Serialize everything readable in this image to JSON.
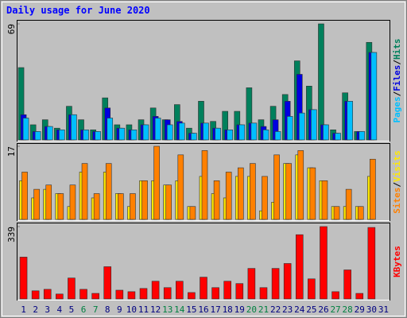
{
  "title": "Daily usage for June 2020",
  "legend_separator": "/",
  "chart_data": [
    {
      "type": "bar",
      "categories": [
        "1",
        "2",
        "3",
        "4",
        "5",
        "6",
        "7",
        "8",
        "9",
        "10",
        "11",
        "12",
        "13",
        "14",
        "15",
        "16",
        "17",
        "18",
        "19",
        "20",
        "21",
        "22",
        "23",
        "24",
        "25",
        "26",
        "27",
        "28",
        "29",
        "30",
        "31"
      ],
      "ylim": [
        0,
        69
      ],
      "yticks": [
        69
      ],
      "series": [
        {
          "name": "Hits",
          "color": "#00805c",
          "values": [
            43,
            9,
            12,
            7,
            20,
            12,
            6,
            25,
            9,
            9,
            12,
            19,
            12,
            21,
            7,
            23,
            11,
            17,
            17,
            31,
            12,
            20,
            27,
            47,
            32,
            69,
            6,
            28,
            5,
            58,
            0
          ]
        },
        {
          "name": "Files",
          "color": "#0000e0",
          "values": [
            15,
            5,
            8,
            6,
            15,
            6,
            5,
            19,
            7,
            6,
            9,
            14,
            12,
            11,
            4,
            10,
            7,
            6,
            9,
            10,
            8,
            12,
            23,
            39,
            18,
            9,
            4,
            23,
            5,
            52,
            0
          ]
        },
        {
          "name": "Pages",
          "color": "#00bfff",
          "values": [
            13,
            5,
            8,
            6,
            15,
            6,
            5,
            13,
            7,
            6,
            9,
            13,
            9,
            10,
            4,
            10,
            7,
            6,
            9,
            10,
            6,
            5,
            14,
            16,
            18,
            9,
            4,
            23,
            5,
            52,
            0
          ]
        }
      ]
    },
    {
      "type": "bar",
      "categories": [
        "1",
        "2",
        "3",
        "4",
        "5",
        "6",
        "7",
        "8",
        "9",
        "10",
        "11",
        "12",
        "13",
        "14",
        "15",
        "16",
        "17",
        "18",
        "19",
        "20",
        "21",
        "22",
        "23",
        "24",
        "25",
        "26",
        "27",
        "28",
        "29",
        "30",
        "31"
      ],
      "ylim": [
        0,
        17
      ],
      "yticks": [
        17
      ],
      "series": [
        {
          "name": "Visits",
          "color": "#ffe800",
          "values": [
            9,
            5,
            7,
            6,
            3,
            11,
            5,
            11,
            6,
            3,
            9,
            9,
            8,
            9,
            3,
            10,
            6,
            5,
            10,
            10,
            2,
            4,
            13,
            15,
            12,
            9,
            3,
            3,
            3,
            10,
            0
          ]
        },
        {
          "name": "Sites",
          "color": "#ff8000",
          "values": [
            11,
            7,
            8,
            6,
            8,
            13,
            6,
            13,
            6,
            6,
            9,
            17,
            8,
            15,
            3,
            16,
            9,
            11,
            12,
            13,
            10,
            15,
            13,
            16,
            12,
            9,
            3,
            7,
            3,
            14,
            0
          ]
        }
      ]
    },
    {
      "type": "bar",
      "categories": [
        "1",
        "2",
        "3",
        "4",
        "5",
        "6",
        "7",
        "8",
        "9",
        "10",
        "11",
        "12",
        "13",
        "14",
        "15",
        "16",
        "17",
        "18",
        "19",
        "20",
        "21",
        "22",
        "23",
        "24",
        "25",
        "26",
        "27",
        "28",
        "29",
        "30",
        "31"
      ],
      "category_colors": [
        "#000080",
        "#000080",
        "#000080",
        "#000080",
        "#000080",
        "#008040",
        "#008040",
        "#000080",
        "#000080",
        "#000080",
        "#000080",
        "#000080",
        "#008040",
        "#008040",
        "#000080",
        "#000080",
        "#000080",
        "#000080",
        "#000080",
        "#008040",
        "#008040",
        "#000080",
        "#000080",
        "#000080",
        "#000080",
        "#000080",
        "#008040",
        "#008040",
        "#000080",
        "#000080",
        "#000080"
      ],
      "ylim": [
        0,
        339
      ],
      "yticks": [
        339
      ],
      "series": [
        {
          "name": "KBytes",
          "color": "#ff0000",
          "values": [
            196,
            38,
            45,
            23,
            98,
            45,
            26,
            151,
            41,
            34,
            49,
            83,
            53,
            83,
            30,
            102,
            53,
            83,
            72,
            143,
            53,
            143,
            166,
            301,
            94,
            339,
            34,
            136,
            26,
            335,
            0
          ]
        }
      ]
    }
  ]
}
